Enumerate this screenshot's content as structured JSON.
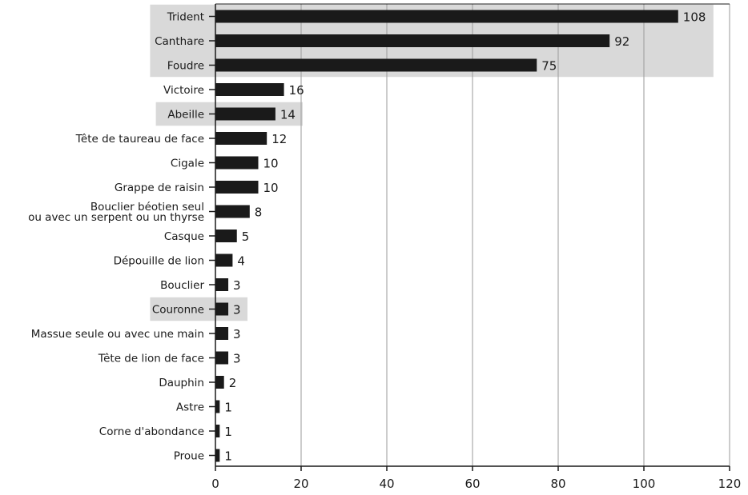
{
  "chart_data": {
    "type": "bar",
    "orientation": "horizontal",
    "categories": [
      "Trident",
      "Canthare",
      "Foudre",
      "Victoire",
      "Abeille",
      "Tête de taureau de face",
      "Cigale",
      "Grappe de raisin",
      "Bouclier béotien seul\nou avec un serpent ou un thyrse",
      "Casque",
      "Dépouille de lion",
      "Bouclier",
      "Couronne",
      "Massue seule ou avec une main",
      "Tête de lion de face",
      "Dauphin",
      "Astre",
      "Corne d'abondance",
      "Proue"
    ],
    "values": [
      108,
      92,
      75,
      16,
      14,
      12,
      10,
      10,
      8,
      5,
      4,
      3,
      3,
      3,
      3,
      2,
      1,
      1,
      1
    ],
    "highlighted_categories": [
      "Trident",
      "Canthare",
      "Foudre",
      "Abeille",
      "Couronne"
    ],
    "title": "",
    "xlabel": "",
    "ylabel": "",
    "xlim": [
      0,
      120
    ],
    "xticks": [
      0,
      20,
      40,
      60,
      80,
      100,
      120
    ],
    "grid": "vertical",
    "colors": {
      "bar": "#1a1a1a",
      "highlight": "#d9d9d9",
      "grid": "#9a9a9a",
      "axis": "#1a1a1a"
    }
  }
}
